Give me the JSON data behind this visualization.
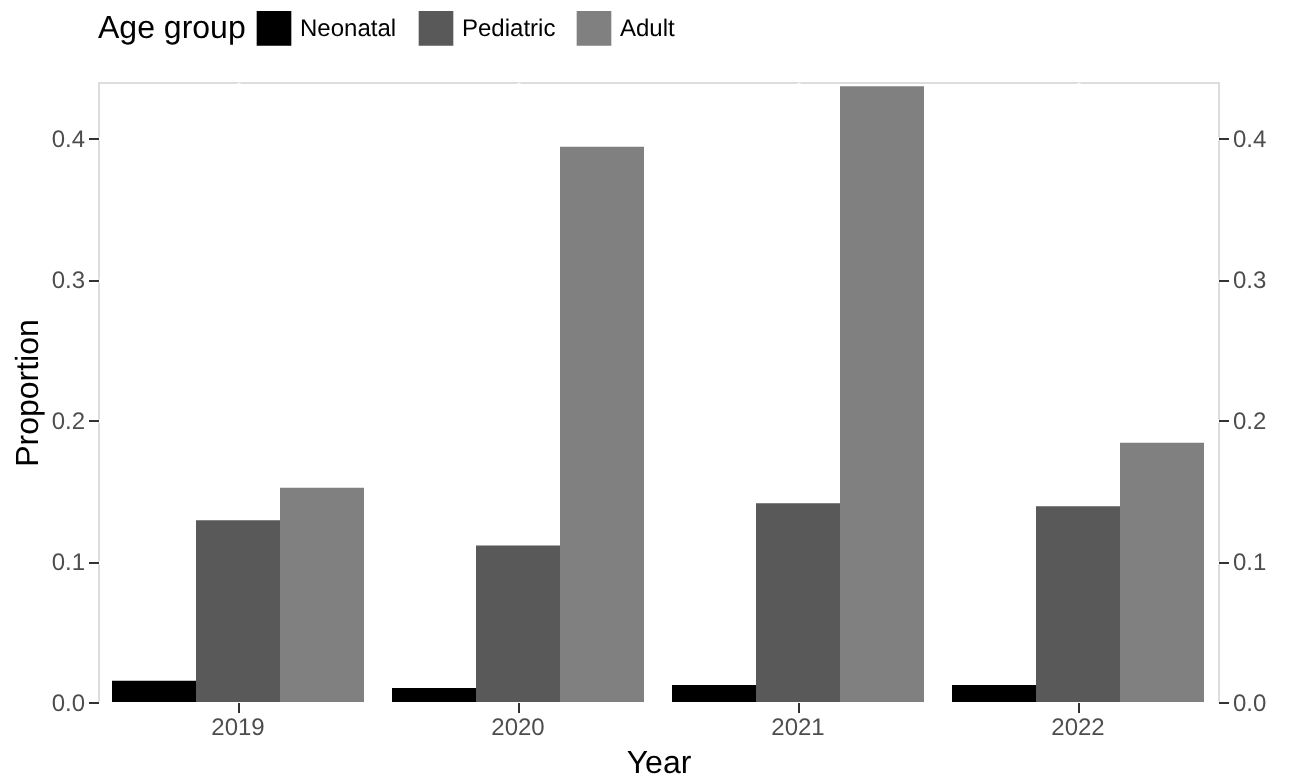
{
  "chart_data": {
    "type": "bar",
    "xlabel": "Year",
    "ylabel": "Proportion",
    "legend_title": "Age group",
    "legend": "top",
    "categories": [
      "2019",
      "2020",
      "2021",
      "2022"
    ],
    "series": [
      {
        "name": "Neonatal",
        "color": "#000000",
        "values": [
          0.015,
          0.01,
          0.012,
          0.012
        ]
      },
      {
        "name": "Pediatric",
        "color": "#595959",
        "values": [
          0.129,
          0.111,
          0.141,
          0.139
        ]
      },
      {
        "name": "Adult",
        "color": "#808080",
        "values": [
          0.152,
          0.394,
          0.437,
          0.184
        ]
      }
    ],
    "ylim": [
      0,
      0.44
    ],
    "yticks": [
      {
        "value": 0,
        "label": "0.0"
      },
      0.1,
      0.2,
      0.3,
      0.4
    ],
    "y2lim": [
      0,
      0.44
    ],
    "y2ticks": [
      {
        "value": 0,
        "label": "0.0"
      },
      0.1,
      0.2,
      0.3,
      0.4
    ],
    "grid": true
  }
}
